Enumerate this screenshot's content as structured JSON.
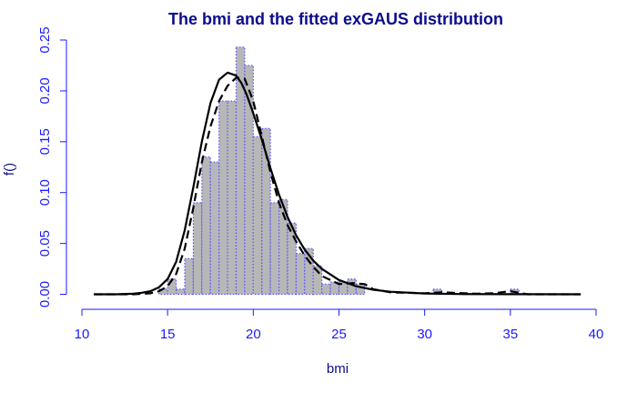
{
  "chart_data": {
    "type": "histogram",
    "title": "The bmi and the fitted exGAUS distribution",
    "xlabel": "bmi",
    "ylabel": "f()",
    "xlim": [
      10,
      40
    ],
    "ylim": [
      0,
      0.25
    ],
    "xticks": [
      "10",
      "15",
      "20",
      "25",
      "30",
      "35",
      "40"
    ],
    "yticks": [
      "0.00",
      "0.05",
      "0.10",
      "0.15",
      "0.20",
      "0.25"
    ],
    "bin_width": 0.5,
    "bars": [
      {
        "x0": 14.5,
        "value": 0.005
      },
      {
        "x0": 15.0,
        "value": 0.015
      },
      {
        "x0": 15.5,
        "value": 0.005
      },
      {
        "x0": 16.0,
        "value": 0.035
      },
      {
        "x0": 16.5,
        "value": 0.09
      },
      {
        "x0": 17.0,
        "value": 0.135
      },
      {
        "x0": 17.5,
        "value": 0.13
      },
      {
        "x0": 18.0,
        "value": 0.19
      },
      {
        "x0": 18.5,
        "value": 0.19
      },
      {
        "x0": 19.0,
        "value": 0.243
      },
      {
        "x0": 19.5,
        "value": 0.225
      },
      {
        "x0": 20.0,
        "value": 0.155
      },
      {
        "x0": 20.5,
        "value": 0.163
      },
      {
        "x0": 21.0,
        "value": 0.09
      },
      {
        "x0": 21.5,
        "value": 0.093
      },
      {
        "x0": 22.0,
        "value": 0.07
      },
      {
        "x0": 22.5,
        "value": 0.04
      },
      {
        "x0": 23.0,
        "value": 0.045
      },
      {
        "x0": 23.5,
        "value": 0.028
      },
      {
        "x0": 24.0,
        "value": 0.01
      },
      {
        "x0": 24.5,
        "value": 0.012
      },
      {
        "x0": 25.0,
        "value": 0.012
      },
      {
        "x0": 25.5,
        "value": 0.015
      },
      {
        "x0": 26.0,
        "value": 0.01
      },
      {
        "x0": 30.5,
        "value": 0.005
      },
      {
        "x0": 35.0,
        "value": 0.005
      }
    ],
    "series": [
      {
        "style": "solid",
        "x": [
          10.7,
          12,
          13,
          13.5,
          14,
          14.5,
          15,
          15.5,
          16,
          16.5,
          17,
          17.5,
          18,
          18.5,
          19,
          19.3,
          19.6,
          20,
          20.5,
          21,
          21.5,
          22,
          22.5,
          23,
          23.5,
          24,
          25,
          26,
          27,
          28,
          30,
          32,
          35,
          39.1
        ],
        "y": [
          0.0,
          0.0,
          0.0005,
          0.0015,
          0.003,
          0.007,
          0.015,
          0.032,
          0.063,
          0.105,
          0.15,
          0.188,
          0.211,
          0.218,
          0.215,
          0.208,
          0.197,
          0.178,
          0.152,
          0.124,
          0.098,
          0.076,
          0.058,
          0.044,
          0.033,
          0.025,
          0.014,
          0.008,
          0.0045,
          0.0025,
          0.0008,
          0.0003,
          0.0001,
          0.0
        ]
      },
      {
        "style": "dashed",
        "x": [
          10.7,
          13,
          14,
          14.5,
          15,
          15.5,
          16,
          16.5,
          17,
          17.5,
          18,
          18.5,
          19,
          19.5,
          20,
          20.5,
          21,
          21.5,
          22,
          22.5,
          23,
          23.5,
          24,
          25,
          25.8,
          26.5,
          27,
          28,
          30,
          31,
          33,
          34,
          35,
          36,
          39.1
        ],
        "y": [
          0.0,
          0.0,
          0.001,
          0.003,
          0.008,
          0.02,
          0.045,
          0.085,
          0.13,
          0.165,
          0.19,
          0.205,
          0.213,
          0.212,
          0.19,
          0.155,
          0.12,
          0.09,
          0.068,
          0.052,
          0.038,
          0.027,
          0.018,
          0.01,
          0.011,
          0.01,
          0.005,
          0.002,
          0.001,
          0.002,
          0.0005,
          0.001,
          0.003,
          0.0,
          0.0
        ]
      }
    ],
    "colors": {
      "bar_fill": "#b7b7b7",
      "bar_border": "#5555ff",
      "axis": "#1a1aff",
      "title": "#0c0c8c",
      "curve": "#000000"
    }
  }
}
